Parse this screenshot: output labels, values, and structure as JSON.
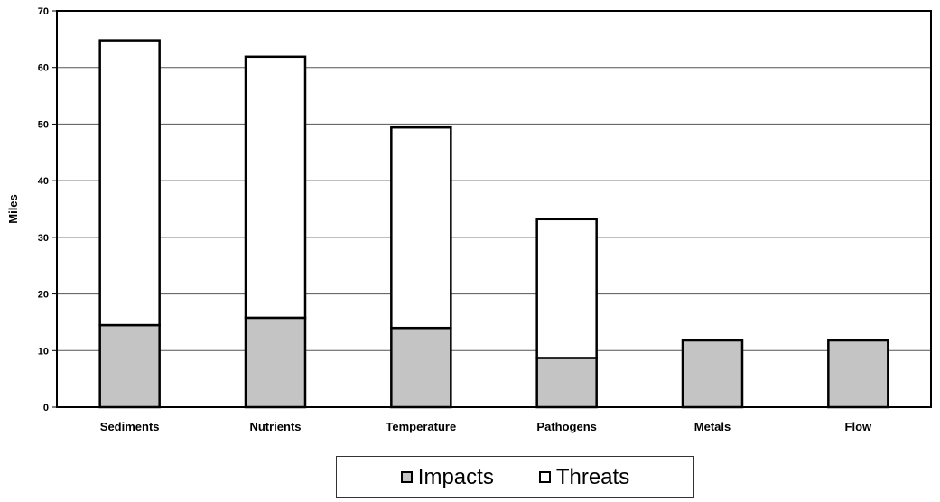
{
  "chart_data": {
    "type": "bar",
    "stacked": true,
    "categories": [
      "Sediments",
      "Nutrients",
      "Temperature",
      "Pathogens",
      "Metals",
      "Flow"
    ],
    "series": [
      {
        "name": "Impacts",
        "values": [
          14.5,
          15.8,
          14,
          8.7,
          11.8,
          11.8
        ]
      },
      {
        "name": "Threats",
        "values": [
          50.3,
          46.1,
          35.4,
          24.5,
          0,
          0
        ]
      }
    ],
    "title": "",
    "xlabel": "",
    "ylabel": "Miles",
    "ylim": [
      0,
      70
    ],
    "yticks": [
      0,
      10,
      20,
      30,
      40,
      50,
      60,
      70
    ],
    "grid": true,
    "legend_position": "bottom",
    "colors": {
      "Impacts": "#c4c4c4",
      "Threats": "#ffffff",
      "outline": "#000000",
      "grid": "#555555"
    }
  }
}
